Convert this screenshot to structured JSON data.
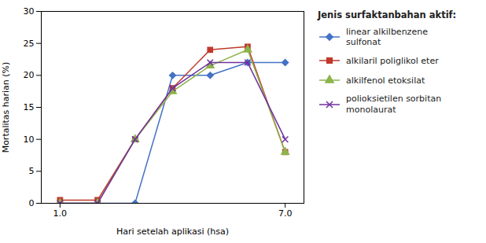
{
  "chart_data": {
    "type": "line",
    "title": "Jenis surfaktanbahan aktif:",
    "xlabel": "Hari setelah aplikasi (hsa)",
    "ylabel": "Mortalitas harian (%)",
    "x": [
      1,
      2,
      3,
      4,
      5,
      6,
      7
    ],
    "series": [
      {
        "name": "linear alkilbenzene\nsulfonat",
        "color": "#4472C4",
        "marker": "diamond",
        "values": [
          0,
          0,
          0,
          20,
          20,
          22,
          22
        ]
      },
      {
        "name": "alkilaril poliglikol eter",
        "color": "#C0392B",
        "marker": "square",
        "values": [
          0.5,
          0.5,
          10,
          18,
          24,
          24.5,
          8
        ]
      },
      {
        "name": "alkilfenol etoksilat",
        "color": "#8DB44A",
        "marker": "triangle",
        "values": [
          0,
          0,
          10,
          17.5,
          21.5,
          24,
          8
        ]
      },
      {
        "name": "polioksietilen sorbitan\nmonolaurat",
        "color": "#7030A0",
        "marker": "x",
        "values": [
          0,
          0,
          10,
          18,
          22,
          22,
          10
        ]
      }
    ],
    "xlim": [
      0.5,
      7.5
    ],
    "xticks": [
      1,
      7
    ],
    "ylim": [
      0,
      30
    ],
    "yticks": [
      0,
      5,
      10,
      15,
      20,
      25,
      30
    ],
    "legend": "right"
  }
}
